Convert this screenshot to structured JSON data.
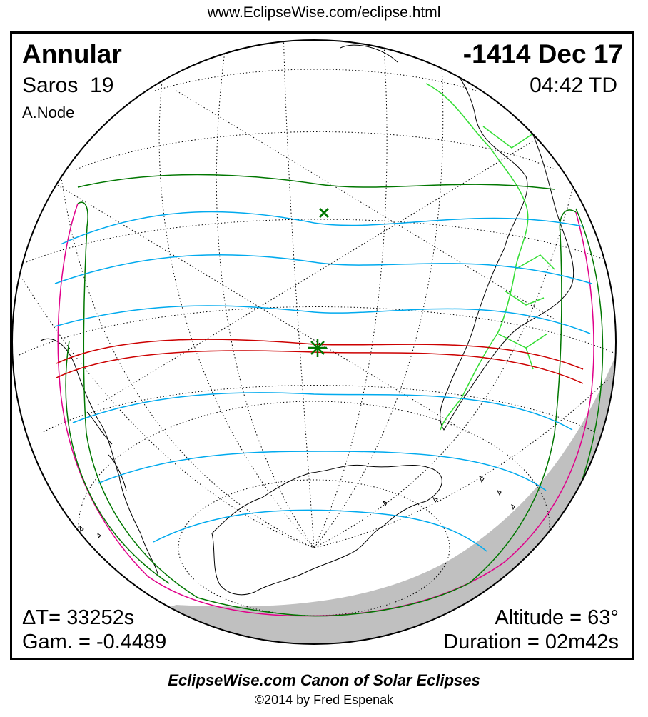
{
  "header": {
    "url": "www.EclipseWise.com/eclipse.html"
  },
  "eclipse": {
    "type": "Annular",
    "date": "-1414 Dec 17",
    "saros_label": "Saros",
    "saros_number": "19",
    "time": "04:42 TD",
    "node": "A.Node",
    "delta_t": "ΔT=  33252s",
    "gamma": "Gam. = -0.4489",
    "altitude": "Altitude = 63°",
    "duration": "Duration = 02m42s"
  },
  "footer": {
    "title": "EclipseWise.com Canon of Solar Eclipses",
    "copyright": "©2014 by Fred Espenak"
  },
  "colors": {
    "central_path": "#cc0000",
    "penumbral_limits": "#007700",
    "contact_lines": "#00aaee",
    "rise_set_curves": "#e0008a",
    "borders": "#33dd33",
    "night_shade": "#c0c0c0",
    "coastline": "#000000"
  },
  "markers": {
    "greatest_eclipse": "star-icon",
    "subsolar_point": "cross-icon"
  }
}
